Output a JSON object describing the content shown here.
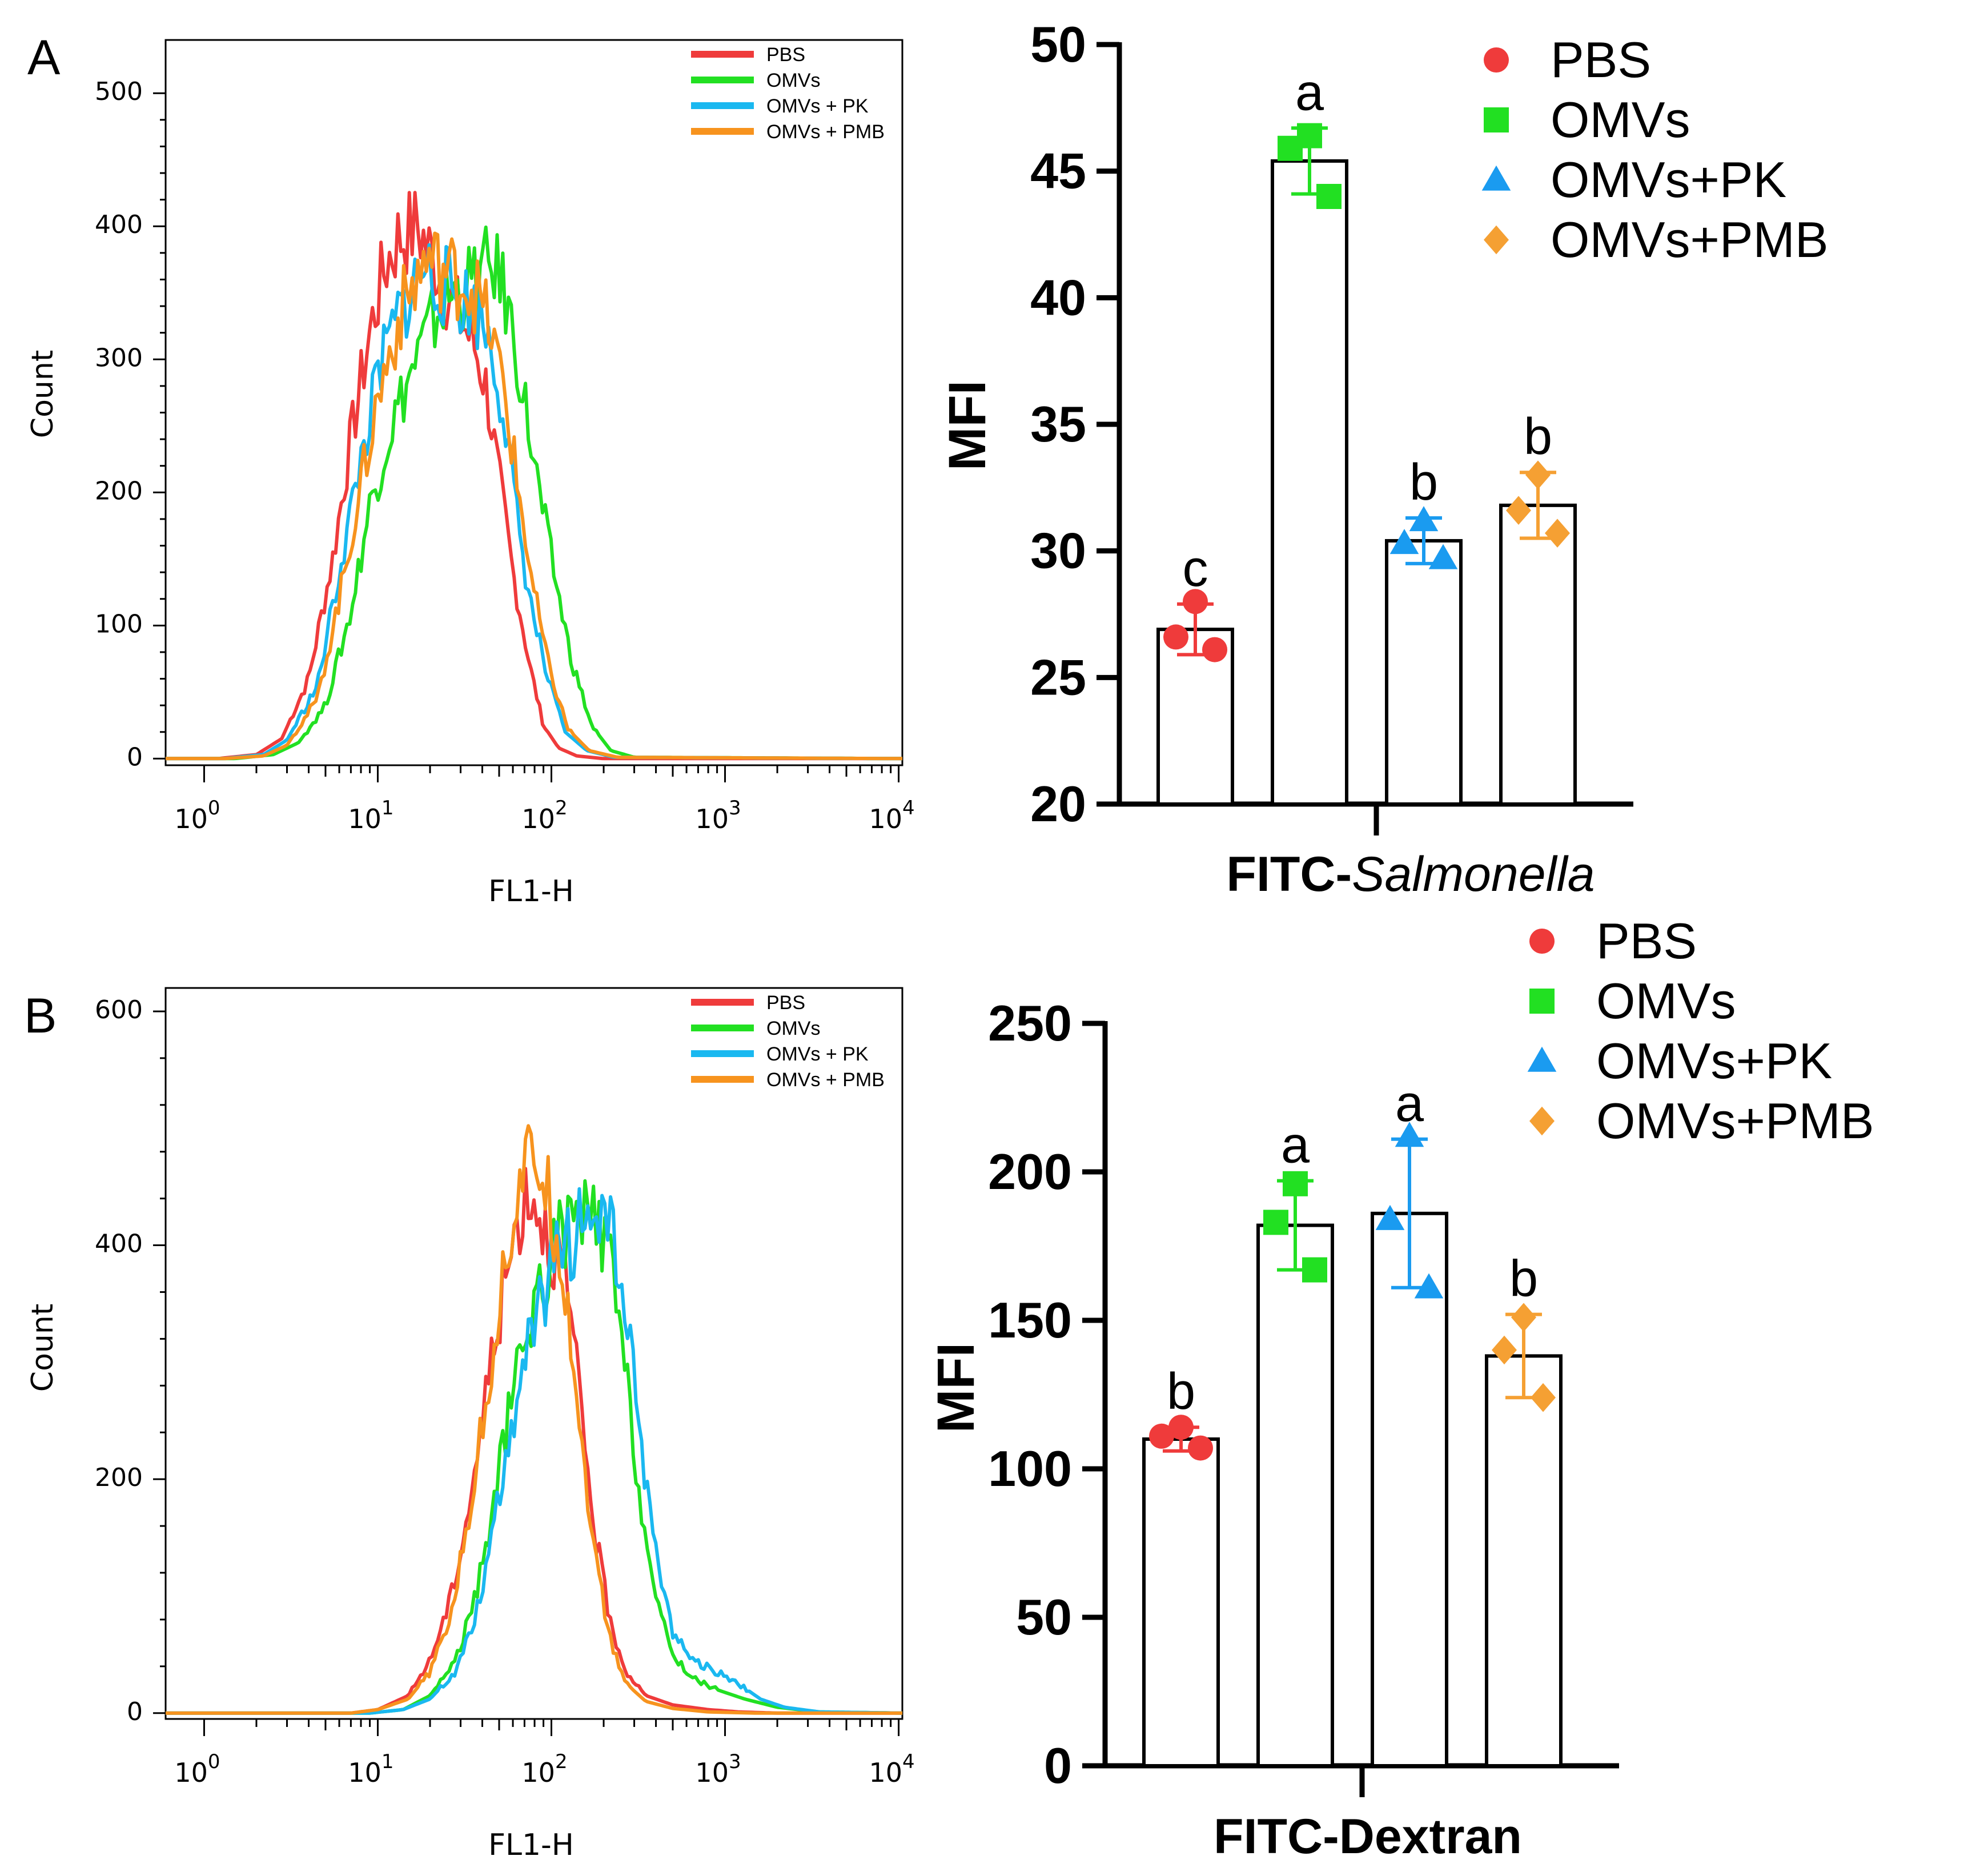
{
  "colors": {
    "PBS": "#ef3b3b",
    "OMVs": "#22e022",
    "OMVs + PK": "#1ab8f0",
    "OMVs + PMB": "#f7931e",
    "PBS_bar": "#ef3b3b",
    "OMVs_bar": "#22e022",
    "PK_bar": "#1a9bf0",
    "PMB_bar": "#f5a033"
  },
  "panel_labels": {
    "A": "A",
    "B": "B"
  },
  "chart_data": [
    {
      "id": "histA",
      "type": "line",
      "title": "",
      "xlabel": "FL1-H",
      "ylabel": "Count",
      "xscale": "log",
      "xlim": [
        0.6,
        10500
      ],
      "ylim": [
        -5,
        540
      ],
      "yticks": [
        "0",
        "100",
        "200",
        "300",
        "400",
        "500"
      ],
      "xticks": [
        {
          "base": "10",
          "exp": "0"
        },
        {
          "base": "10",
          "exp": "1"
        },
        {
          "base": "10",
          "exp": "2"
        },
        {
          "base": "10",
          "exp": "3"
        },
        {
          "base": "10",
          "exp": "4"
        }
      ],
      "legend": [
        "PBS",
        "OMVs",
        "OMVs + PK",
        "OMVs + PMB"
      ],
      "legend_position": "top-right",
      "series": [
        {
          "name": "PBS",
          "x": [
            0.6,
            1.2,
            2,
            2.8,
            4,
            5.5,
            7,
            9,
            11,
            13,
            15,
            17,
            19,
            22,
            25,
            30,
            36,
            42,
            50,
            60,
            75,
            90,
            110,
            140,
            200,
            10500
          ],
          "y": [
            0,
            0,
            3,
            15,
            60,
            150,
            240,
            320,
            370,
            390,
            395,
            400,
            385,
            370,
            350,
            330,
            310,
            280,
            210,
            140,
            70,
            25,
            8,
            2,
            0,
            0
          ]
        },
        {
          "name": "OMVs",
          "x": [
            0.6,
            1.5,
            2.5,
            3.5,
            5,
            7,
            9,
            12,
            15,
            18,
            22,
            27,
            33,
            40,
            47,
            55,
            65,
            80,
            100,
            130,
            170,
            220,
            300,
            10500
          ],
          "y": [
            0,
            0,
            3,
            12,
            40,
            110,
            190,
            250,
            285,
            310,
            335,
            350,
            355,
            365,
            370,
            345,
            295,
            220,
            150,
            75,
            25,
            6,
            1,
            0
          ]
        },
        {
          "name": "OMVs + PK",
          "x": [
            0.6,
            1.3,
            2.2,
            3,
            4.5,
            6,
            8,
            10,
            12,
            14,
            16,
            18,
            21,
            25,
            30,
            36,
            43,
            52,
            62,
            75,
            95,
            120,
            160,
            230,
            10500
          ],
          "y": [
            0,
            0,
            3,
            14,
            55,
            140,
            225,
            285,
            320,
            340,
            355,
            370,
            360,
            355,
            345,
            340,
            320,
            270,
            190,
            120,
            60,
            20,
            6,
            1,
            0
          ]
        },
        {
          "name": "OMVs + PMB",
          "x": [
            0.6,
            1.3,
            2.2,
            3,
            4.5,
            6,
            8,
            10,
            12,
            14,
            16,
            19,
            22,
            26,
            31,
            37,
            44,
            53,
            64,
            78,
            98,
            125,
            165,
            240,
            10500
          ],
          "y": [
            0,
            0,
            2,
            10,
            45,
            120,
            205,
            270,
            310,
            340,
            355,
            375,
            370,
            365,
            360,
            350,
            325,
            280,
            205,
            130,
            65,
            22,
            6,
            1,
            0
          ]
        }
      ]
    },
    {
      "id": "barA",
      "type": "bar",
      "title": "",
      "xlabel_bold": "FITC-",
      "xlabel_italic": "Salmonella",
      "ylabel": "MFI",
      "ylim": [
        20,
        50
      ],
      "yticks": [
        "20",
        "25",
        "30",
        "35",
        "40",
        "45",
        "50"
      ],
      "categories": [
        "PBS",
        "OMVs",
        "OMVs+PK",
        "OMVs+PMB"
      ],
      "values": [
        26.9,
        45.4,
        30.4,
        31.8
      ],
      "errors": [
        1.0,
        1.3,
        0.9,
        1.3
      ],
      "points": [
        [
          28.0,
          26.6,
          26.1
        ],
        [
          46.4,
          45.9,
          44.0
        ],
        [
          31.2,
          30.3,
          29.7
        ],
        [
          33.0,
          31.6,
          30.7
        ]
      ],
      "letters": [
        "c",
        "a",
        "b",
        "b"
      ],
      "legend": [
        "PBS",
        "OMVs",
        "OMVs+PK",
        "OMVs+PMB"
      ],
      "legend_position": "top-right"
    },
    {
      "id": "histB",
      "type": "line",
      "title": "",
      "xlabel": "FL1-H",
      "ylabel": "Count",
      "xscale": "log",
      "xlim": [
        0.6,
        10500
      ],
      "ylim": [
        -5,
        620
      ],
      "yticks": [
        "0",
        "200",
        "400",
        "600"
      ],
      "xticks": [
        {
          "base": "10",
          "exp": "0"
        },
        {
          "base": "10",
          "exp": "1"
        },
        {
          "base": "10",
          "exp": "2"
        },
        {
          "base": "10",
          "exp": "3"
        },
        {
          "base": "10",
          "exp": "4"
        }
      ],
      "legend": [
        "PBS",
        "OMVs",
        "OMVs + PK",
        "OMVs + PMB"
      ],
      "legend_position": "top-right",
      "series": [
        {
          "name": "PBS",
          "x": [
            0.6,
            7,
            10,
            15,
            20,
            26,
            32,
            40,
            48,
            56,
            64,
            72,
            80,
            90,
            100,
            115,
            130,
            150,
            180,
            220,
            270,
            350,
            500,
            800,
            1200,
            2000,
            10500
          ],
          "y": [
            0,
            0,
            3,
            15,
            45,
            95,
            160,
            250,
            330,
            380,
            420,
            450,
            440,
            420,
            400,
            385,
            330,
            250,
            150,
            75,
            35,
            15,
            7,
            3,
            1,
            0,
            0
          ]
        },
        {
          "name": "OMVs",
          "x": [
            0.6,
            9,
            14,
            20,
            28,
            36,
            45,
            55,
            68,
            80,
            95,
            110,
            130,
            155,
            180,
            215,
            260,
            320,
            400,
            500,
            650,
            900,
            1300,
            2000,
            3500,
            10500
          ],
          "y": [
            0,
            0,
            3,
            15,
            45,
            95,
            165,
            245,
            310,
            350,
            380,
            405,
            420,
            425,
            420,
            390,
            305,
            190,
            95,
            50,
            30,
            20,
            12,
            5,
            1,
            0
          ]
        },
        {
          "name": "OMVs + PK",
          "x": [
            0.6,
            9,
            14,
            20,
            28,
            36,
            45,
            55,
            68,
            80,
            95,
            110,
            130,
            155,
            180,
            215,
            260,
            320,
            400,
            500,
            650,
            900,
            1200,
            1600,
            2200,
            3500,
            10500
          ],
          "y": [
            0,
            0,
            3,
            12,
            35,
            80,
            145,
            225,
            295,
            330,
            365,
            390,
            405,
            420,
            430,
            415,
            355,
            245,
            135,
            70,
            45,
            35,
            25,
            12,
            5,
            1,
            0
          ]
        },
        {
          "name": "OMVs + PMB",
          "x": [
            0.6,
            7,
            10,
            15,
            20,
            26,
            32,
            40,
            48,
            56,
            64,
            72,
            80,
            90,
            100,
            115,
            130,
            150,
            180,
            220,
            270,
            350,
            500,
            800,
            1500,
            10500
          ],
          "y": [
            0,
            0,
            3,
            12,
            35,
            80,
            150,
            245,
            330,
            400,
            445,
            470,
            475,
            460,
            430,
            390,
            320,
            230,
            130,
            60,
            25,
            10,
            4,
            1,
            0,
            0
          ]
        }
      ]
    },
    {
      "id": "barB",
      "type": "bar",
      "title": "",
      "xlabel_bold": "FITC-Dextran",
      "xlabel_italic": "",
      "ylabel": "MFI",
      "ylim": [
        0,
        250
      ],
      "yticks": [
        "0",
        "50",
        "100",
        "150",
        "200",
        "250"
      ],
      "categories": [
        "PBS",
        "OMVs",
        "OMVs+PK",
        "OMVs+PMB"
      ],
      "values": [
        110,
        182,
        186,
        138
      ],
      "errors": [
        4,
        15,
        25,
        14
      ],
      "points": [
        [
          114,
          111,
          107
        ],
        [
          196,
          183,
          167
        ],
        [
          212,
          184,
          161
        ],
        [
          151,
          140,
          124
        ]
      ],
      "letters": [
        "b",
        "a",
        "a",
        "b"
      ],
      "legend": [
        "PBS",
        "OMVs",
        "OMVs+PK",
        "OMVs+PMB"
      ],
      "legend_position": "top-right"
    }
  ]
}
